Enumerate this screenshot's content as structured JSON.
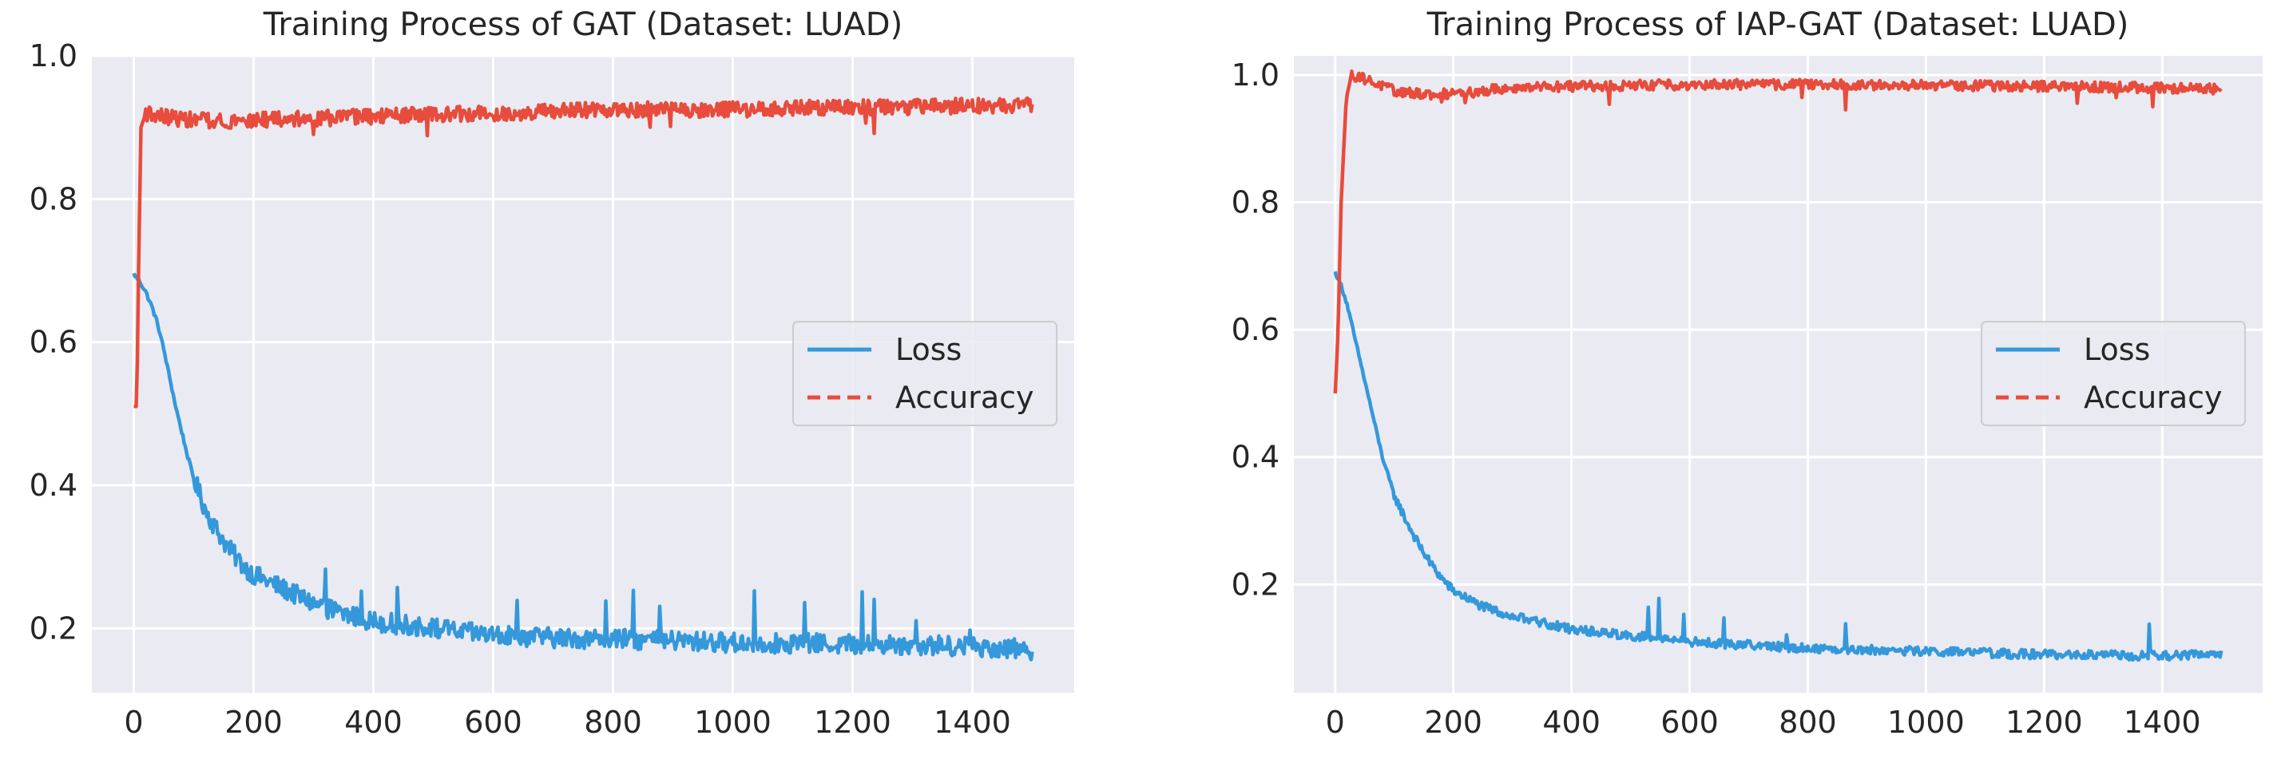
{
  "chart_data": [
    {
      "type": "line",
      "title": "Training Process of GAT (Dataset: LUAD)",
      "xlabel": "",
      "ylabel": "",
      "xlim": [
        -70,
        1570
      ],
      "ylim": [
        0.11,
        1.0
      ],
      "xticks": [
        "0",
        "200",
        "400",
        "600",
        "800",
        "1000",
        "1200",
        "1400"
      ],
      "yticks": [
        "0.2",
        "0.4",
        "0.6",
        "0.8",
        "1.0"
      ],
      "grid": true,
      "legend": {
        "position": "center-right",
        "entries": [
          "Loss",
          "Accuracy"
        ]
      },
      "series": [
        {
          "name": "Loss",
          "color": "#3498db",
          "style": "solid",
          "points": [
            [
              0,
              0.695
            ],
            [
              10,
              0.685
            ],
            [
              20,
              0.67
            ],
            [
              30,
              0.65
            ],
            [
              40,
              0.625
            ],
            [
              50,
              0.59
            ],
            [
              60,
              0.55
            ],
            [
              70,
              0.51
            ],
            [
              80,
              0.475
            ],
            [
              90,
              0.44
            ],
            [
              100,
              0.41
            ],
            [
              120,
              0.365
            ],
            [
              140,
              0.335
            ],
            [
              160,
              0.31
            ],
            [
              180,
              0.29
            ],
            [
              200,
              0.275
            ],
            [
              250,
              0.255
            ],
            [
              300,
              0.235
            ],
            [
              350,
              0.22
            ],
            [
              400,
              0.21
            ],
            [
              500,
              0.2
            ],
            [
              600,
              0.19
            ],
            [
              700,
              0.187
            ],
            [
              800,
              0.185
            ],
            [
              1000,
              0.18
            ],
            [
              1200,
              0.178
            ],
            [
              1400,
              0.175
            ],
            [
              1500,
              0.17
            ]
          ]
        },
        {
          "name": "Accuracy",
          "color": "#e74c3c",
          "style": "solid",
          "points": [
            [
              0,
              0.51
            ],
            [
              5,
              0.51
            ],
            [
              8,
              0.7
            ],
            [
              12,
              0.9
            ],
            [
              20,
              0.92
            ],
            [
              50,
              0.915
            ],
            [
              100,
              0.91
            ],
            [
              200,
              0.91
            ],
            [
              400,
              0.915
            ],
            [
              600,
              0.92
            ],
            [
              800,
              0.925
            ],
            [
              1000,
              0.925
            ],
            [
              1200,
              0.928
            ],
            [
              1400,
              0.93
            ],
            [
              1500,
              0.93
            ]
          ]
        }
      ]
    },
    {
      "type": "line",
      "title": "Training Process of IAP-GAT (Dataset: LUAD)",
      "xlabel": "",
      "ylabel": "",
      "xlim": [
        -70,
        1570
      ],
      "ylim": [
        0.03,
        1.03
      ],
      "xticks": [
        "0",
        "200",
        "400",
        "600",
        "800",
        "1000",
        "1200",
        "1400"
      ],
      "yticks": [
        "0.2",
        "0.4",
        "0.6",
        "0.8",
        "1.0"
      ],
      "grid": true,
      "legend": {
        "position": "center-right",
        "entries": [
          "Loss",
          "Accuracy"
        ]
      },
      "series": [
        {
          "name": "Loss",
          "color": "#3498db",
          "style": "solid",
          "points": [
            [
              0,
              0.69
            ],
            [
              10,
              0.67
            ],
            [
              20,
              0.64
            ],
            [
              30,
              0.6
            ],
            [
              40,
              0.56
            ],
            [
              50,
              0.52
            ],
            [
              60,
              0.48
            ],
            [
              70,
              0.44
            ],
            [
              80,
              0.4
            ],
            [
              90,
              0.37
            ],
            [
              100,
              0.34
            ],
            [
              120,
              0.3
            ],
            [
              140,
              0.265
            ],
            [
              160,
              0.235
            ],
            [
              180,
              0.21
            ],
            [
              200,
              0.19
            ],
            [
              250,
              0.165
            ],
            [
              300,
              0.15
            ],
            [
              350,
              0.14
            ],
            [
              400,
              0.13
            ],
            [
              500,
              0.12
            ],
            [
              600,
              0.11
            ],
            [
              800,
              0.1
            ],
            [
              1000,
              0.095
            ],
            [
              1200,
              0.09
            ],
            [
              1400,
              0.088
            ],
            [
              1500,
              0.09
            ]
          ]
        },
        {
          "name": "Accuracy",
          "color": "#e74c3c",
          "style": "solid",
          "points": [
            [
              0,
              0.5
            ],
            [
              5,
              0.6
            ],
            [
              10,
              0.8
            ],
            [
              18,
              0.95
            ],
            [
              25,
              0.998
            ],
            [
              40,
              0.998
            ],
            [
              60,
              0.99
            ],
            [
              100,
              0.975
            ],
            [
              150,
              0.97
            ],
            [
              200,
              0.97
            ],
            [
              300,
              0.98
            ],
            [
              400,
              0.982
            ],
            [
              600,
              0.985
            ],
            [
              800,
              0.985
            ],
            [
              1000,
              0.984
            ],
            [
              1200,
              0.982
            ],
            [
              1400,
              0.98
            ],
            [
              1500,
              0.978
            ]
          ]
        }
      ]
    }
  ]
}
